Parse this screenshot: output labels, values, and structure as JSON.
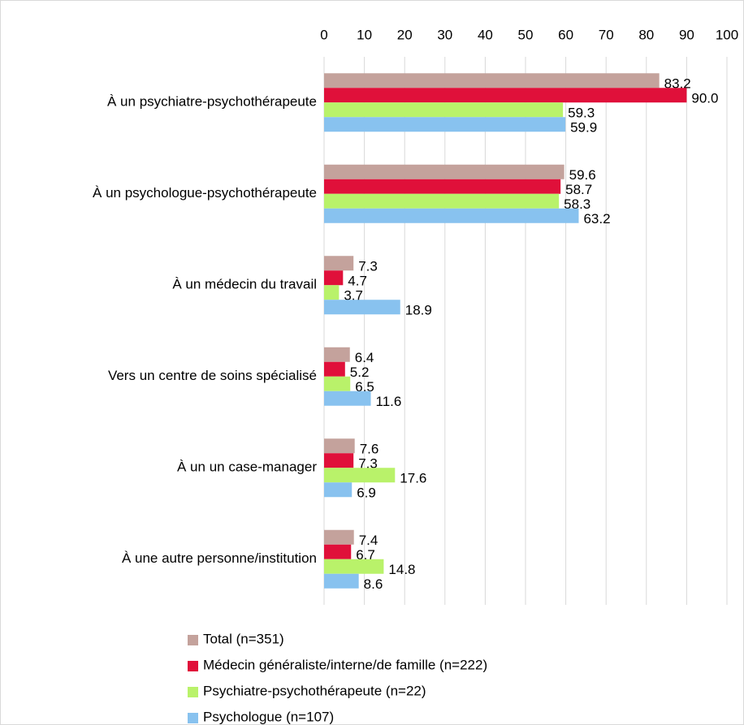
{
  "chart_data": {
    "type": "bar",
    "orientation": "horizontal",
    "categories": [
      "À un psychiatre-psychothérapeute",
      "À un psychologue-psychothérapeute",
      "À un médecin du travail",
      "Vers un centre de soins spécialisé",
      "À un un case-manager",
      "À une autre personne/institution"
    ],
    "series": [
      {
        "name": "Total (n=351)",
        "color": "#c4a29c",
        "values": [
          83.2,
          59.6,
          7.3,
          6.4,
          7.6,
          7.4
        ]
      },
      {
        "name": "Médecin généraliste/interne/de famille (n=222)",
        "color": "#e0103a",
        "values": [
          90.0,
          58.7,
          4.7,
          5.2,
          7.3,
          6.7
        ],
        "value_labels": [
          "90.0",
          "58.7",
          "4.7",
          "5.2",
          "7.3",
          "6.7"
        ]
      },
      {
        "name": "Psychiatre-psychothérapeute (n=22)",
        "color": "#b9f26a",
        "values": [
          59.3,
          58.3,
          3.7,
          6.5,
          17.6,
          14.8
        ]
      },
      {
        "name": "Psychologue (n=107)",
        "color": "#88c2ef",
        "values": [
          59.9,
          63.2,
          18.9,
          11.6,
          6.9,
          8.6
        ]
      }
    ],
    "xlim": [
      0,
      100
    ],
    "xticks": [
      0,
      10,
      20,
      30,
      40,
      50,
      60,
      70,
      80,
      90,
      100
    ],
    "grid": true,
    "legend": "bottom"
  }
}
